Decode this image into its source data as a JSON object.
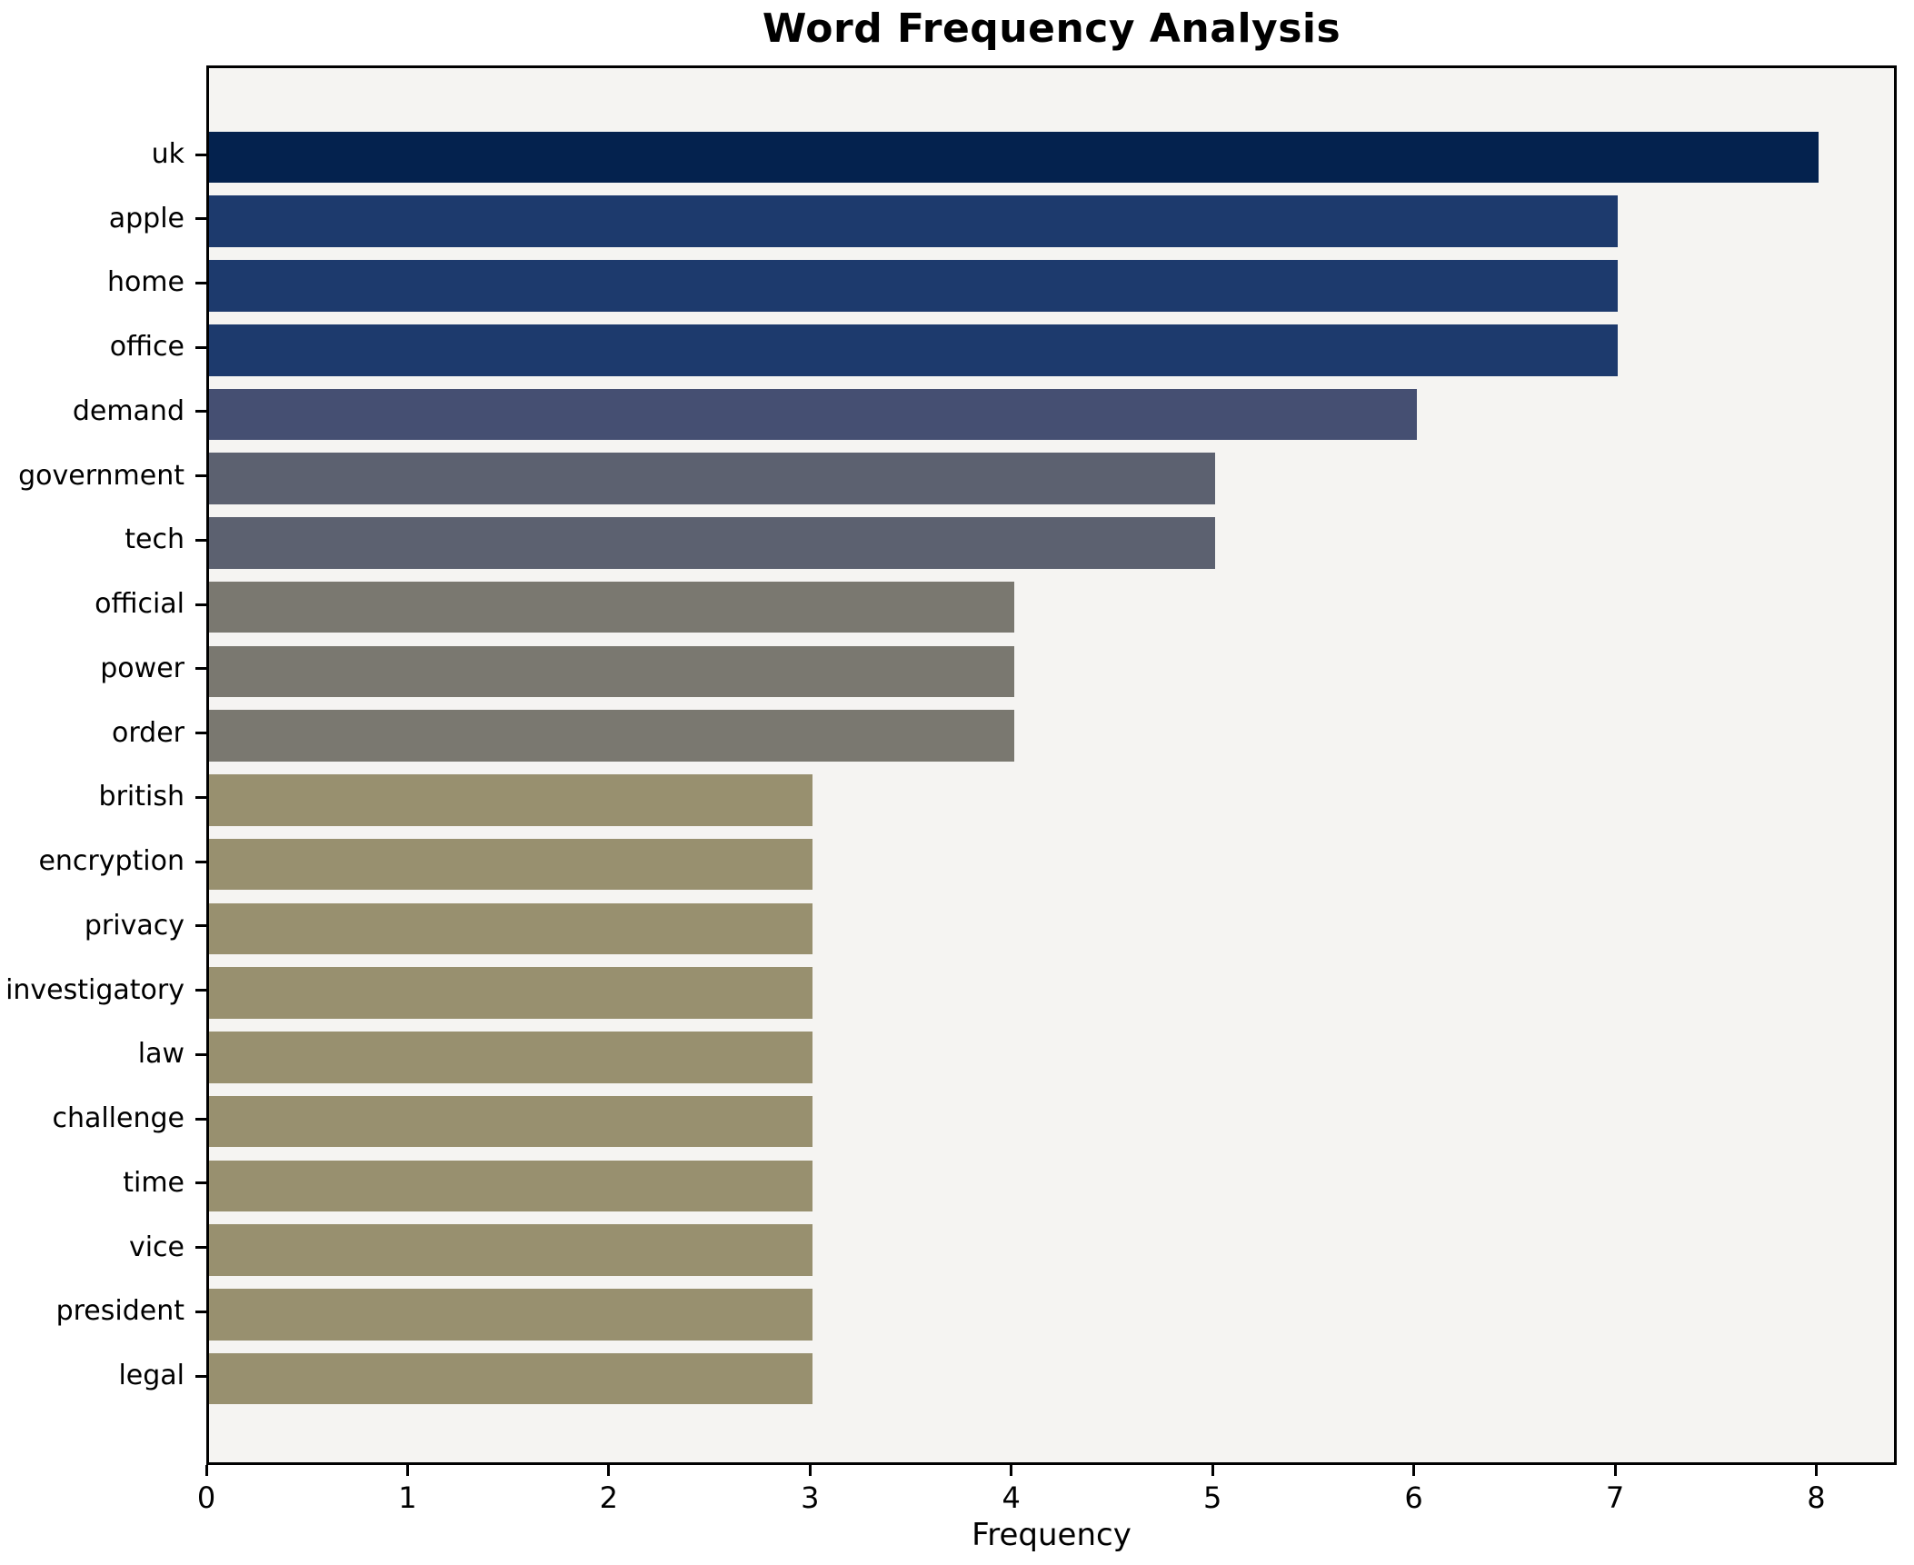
{
  "chart_data": {
    "type": "bar",
    "orientation": "horizontal",
    "title": "Word Frequency Analysis",
    "xlabel": "Frequency",
    "ylabel": "",
    "categories": [
      "uk",
      "apple",
      "home",
      "office",
      "demand",
      "government",
      "tech",
      "official",
      "power",
      "order",
      "british",
      "encryption",
      "privacy",
      "investigatory",
      "law",
      "challenge",
      "time",
      "vice",
      "president",
      "legal"
    ],
    "values": [
      8,
      7,
      7,
      7,
      6,
      5,
      5,
      4,
      4,
      4,
      3,
      3,
      3,
      3,
      3,
      3,
      3,
      3,
      3,
      3
    ],
    "bar_colors": [
      "#04224e",
      "#1d3a6d",
      "#1d3a6d",
      "#1d3a6d",
      "#454f72",
      "#5c6170",
      "#5c6170",
      "#7a7870",
      "#7a7870",
      "#7a7870",
      "#98906f",
      "#98906f",
      "#98906f",
      "#98906f",
      "#98906f",
      "#98906f",
      "#98906f",
      "#98906f",
      "#98906f",
      "#98906f"
    ],
    "xlim": [
      0,
      8.4
    ],
    "x_ticks": [
      0,
      1,
      2,
      3,
      4,
      5,
      6,
      7,
      8
    ],
    "grid": false,
    "legend": null,
    "plot_background": "#f5f4f2",
    "figure_background": "#ffffff"
  }
}
